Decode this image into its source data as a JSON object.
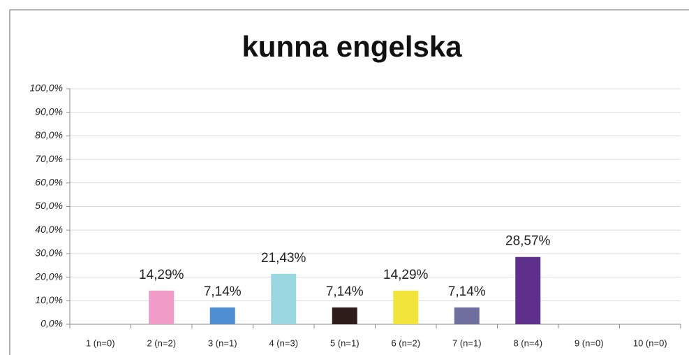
{
  "chart_data": {
    "type": "bar",
    "title": "kunna engelska",
    "categories": [
      "1 (n=0)",
      "2 (n=2)",
      "3 (n=1)",
      "4 (n=3)",
      "5 (n=1)",
      "6 (n=2)",
      "7 (n=1)",
      "8 (n=4)",
      "9 (n=0)",
      "10 (n=0)"
    ],
    "values": [
      0,
      14.29,
      7.14,
      21.43,
      7.14,
      14.29,
      7.14,
      28.57,
      0,
      0
    ],
    "value_labels": [
      null,
      "14,29%",
      "7,14%",
      "21,43%",
      "7,14%",
      "14,29%",
      "7,14%",
      "28,57%",
      null,
      null
    ],
    "colors": [
      null,
      "#f19bc9",
      "#4f8ed2",
      "#9bd7e0",
      "#2e1c1b",
      "#f2e43b",
      "#6e6e9f",
      "#5f308b",
      null,
      null
    ],
    "ylim": [
      0,
      100
    ],
    "yticks": [
      {
        "value": 0,
        "label": "0,0%"
      },
      {
        "value": 10,
        "label": "10,0%"
      },
      {
        "value": 20,
        "label": "20,0%"
      },
      {
        "value": 30,
        "label": "30,0%"
      },
      {
        "value": 40,
        "label": "40,0%"
      },
      {
        "value": 50,
        "label": "50,0%"
      },
      {
        "value": 60,
        "label": "60,0%"
      },
      {
        "value": 70,
        "label": "70,0%"
      },
      {
        "value": 80,
        "label": "80,0%"
      },
      {
        "value": 90,
        "label": "90,0%"
      },
      {
        "value": 100,
        "label": "100,0%"
      }
    ],
    "grid": true
  }
}
